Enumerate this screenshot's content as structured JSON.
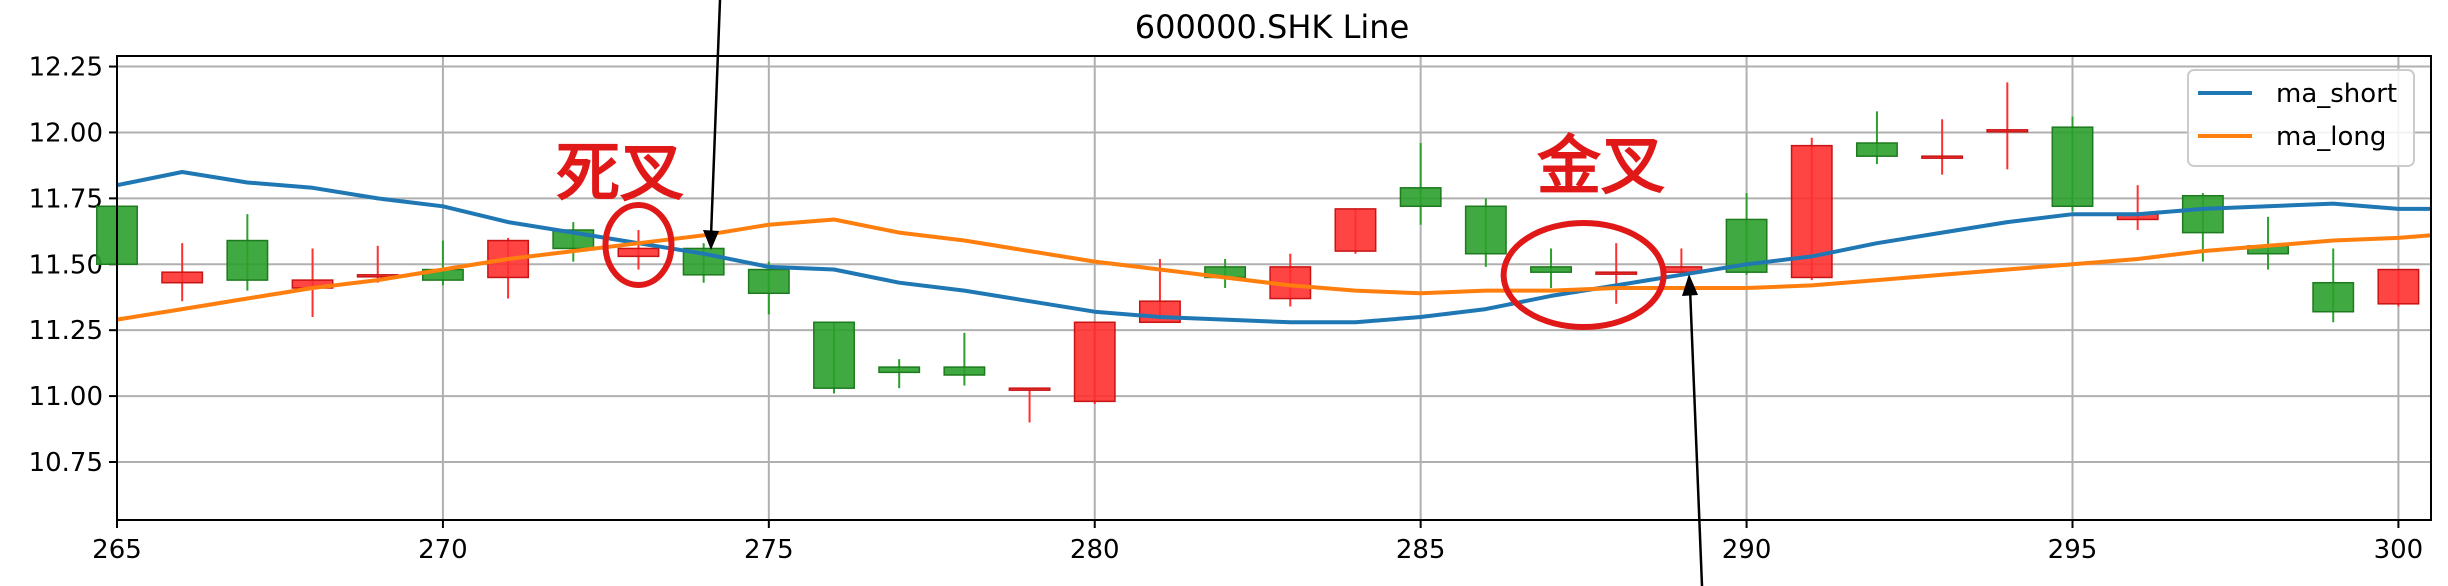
{
  "chart_data": {
    "type": "candlestick",
    "title": "600000.SHK Line",
    "xlabel": "",
    "ylabel": "",
    "xlim": [
      265,
      300.5
    ],
    "ylim": [
      10.53,
      12.29
    ],
    "x_ticks": [
      "265",
      "270",
      "275",
      "280",
      "285",
      "290",
      "295",
      "300"
    ],
    "y_ticks": [
      "10.75",
      "11.00",
      "11.25",
      "11.50",
      "11.75",
      "12.00",
      "12.25"
    ],
    "grid": true,
    "legend": {
      "placement": "top-right",
      "entries": [
        "ma_short",
        "ma_long"
      ]
    },
    "colors": {
      "up": "#ff3030",
      "down": "#2ca02c",
      "ma_short": "#1f77b4",
      "ma_long": "#ff7f0e",
      "annotation": "#e01818"
    },
    "candles": [
      {
        "x": 265,
        "open": 11.72,
        "close": 11.5,
        "high": 11.72,
        "low": 11.37
      },
      {
        "x": 266,
        "open": 11.43,
        "close": 11.47,
        "high": 11.58,
        "low": 11.36
      },
      {
        "x": 267,
        "open": 11.59,
        "close": 11.44,
        "high": 11.69,
        "low": 11.4
      },
      {
        "x": 268,
        "open": 11.41,
        "close": 11.44,
        "high": 11.56,
        "low": 11.3
      },
      {
        "x": 269,
        "open": 11.46,
        "close": 11.46,
        "high": 11.57,
        "low": 11.43
      },
      {
        "x": 270,
        "open": 11.48,
        "close": 11.44,
        "high": 11.59,
        "low": 11.42
      },
      {
        "x": 271,
        "open": 11.45,
        "close": 11.59,
        "high": 11.6,
        "low": 11.37
      },
      {
        "x": 272,
        "open": 11.63,
        "close": 11.56,
        "high": 11.66,
        "low": 11.51
      },
      {
        "x": 273,
        "open": 11.53,
        "close": 11.56,
        "high": 11.63,
        "low": 11.48
      },
      {
        "x": 274,
        "open": 11.56,
        "close": 11.46,
        "high": 11.58,
        "low": 11.43
      },
      {
        "x": 275,
        "open": 11.48,
        "close": 11.39,
        "high": 11.51,
        "low": 11.31
      },
      {
        "x": 276,
        "open": 11.28,
        "close": 11.03,
        "high": 11.28,
        "low": 11.01
      },
      {
        "x": 277,
        "open": 11.11,
        "close": 11.09,
        "high": 11.14,
        "low": 11.03
      },
      {
        "x": 278,
        "open": 11.11,
        "close": 11.08,
        "high": 11.24,
        "low": 11.04
      },
      {
        "x": 279,
        "open": 11.03,
        "close": 11.03,
        "high": 11.03,
        "low": 10.9
      },
      {
        "x": 280,
        "open": 10.98,
        "close": 11.28,
        "high": 11.28,
        "low": 10.97
      },
      {
        "x": 281,
        "open": 11.28,
        "close": 11.36,
        "high": 11.52,
        "low": 11.29
      },
      {
        "x": 282,
        "open": 11.49,
        "close": 11.45,
        "high": 11.52,
        "low": 11.41
      },
      {
        "x": 283,
        "open": 11.37,
        "close": 11.49,
        "high": 11.54,
        "low": 11.34
      },
      {
        "x": 284,
        "open": 11.55,
        "close": 11.71,
        "high": 11.71,
        "low": 11.54
      },
      {
        "x": 285,
        "open": 11.79,
        "close": 11.72,
        "high": 11.96,
        "low": 11.65
      },
      {
        "x": 286,
        "open": 11.72,
        "close": 11.54,
        "high": 11.75,
        "low": 11.49
      },
      {
        "x": 287,
        "open": 11.49,
        "close": 11.47,
        "high": 11.56,
        "low": 11.41
      },
      {
        "x": 288,
        "open": 11.47,
        "close": 11.47,
        "high": 11.58,
        "low": 11.35
      },
      {
        "x": 289,
        "open": 11.47,
        "close": 11.49,
        "high": 11.56,
        "low": 11.47
      },
      {
        "x": 290,
        "open": 11.67,
        "close": 11.47,
        "high": 11.77,
        "low": 11.46
      },
      {
        "x": 291,
        "open": 11.45,
        "close": 11.95,
        "high": 11.98,
        "low": 11.44
      },
      {
        "x": 292,
        "open": 11.96,
        "close": 11.91,
        "high": 12.08,
        "low": 11.88
      },
      {
        "x": 293,
        "open": 11.91,
        "close": 11.91,
        "high": 12.05,
        "low": 11.84
      },
      {
        "x": 294,
        "open": 12.01,
        "close": 12.01,
        "high": 12.19,
        "low": 11.86
      },
      {
        "x": 295,
        "open": 12.02,
        "close": 11.72,
        "high": 12.06,
        "low": 11.7
      },
      {
        "x": 296,
        "open": 11.67,
        "close": 11.69,
        "high": 11.8,
        "low": 11.63
      },
      {
        "x": 297,
        "open": 11.76,
        "close": 11.62,
        "high": 11.77,
        "low": 11.51
      },
      {
        "x": 298,
        "open": 11.57,
        "close": 11.54,
        "high": 11.68,
        "low": 11.48
      },
      {
        "x": 299,
        "open": 11.43,
        "close": 11.32,
        "high": 11.56,
        "low": 11.28
      },
      {
        "x": 300,
        "open": 11.35,
        "close": 11.48,
        "high": 11.48,
        "low": 11.34
      }
    ],
    "series": [
      {
        "name": "ma_short",
        "x": [
          265,
          266,
          267,
          268,
          269,
          270,
          271,
          272,
          273,
          274,
          275,
          276,
          277,
          278,
          279,
          280,
          281,
          282,
          283,
          284,
          285,
          286,
          287,
          288,
          289,
          290,
          291,
          292,
          293,
          294,
          295,
          296,
          297,
          298,
          299,
          300,
          300.5
        ],
        "values": [
          11.8,
          11.85,
          11.81,
          11.79,
          11.75,
          11.72,
          11.66,
          11.62,
          11.58,
          11.54,
          11.49,
          11.48,
          11.43,
          11.4,
          11.36,
          11.32,
          11.3,
          11.29,
          11.28,
          11.28,
          11.3,
          11.33,
          11.38,
          11.42,
          11.46,
          11.5,
          11.53,
          11.58,
          11.62,
          11.66,
          11.69,
          11.69,
          11.71,
          11.72,
          11.73,
          11.71,
          11.71
        ]
      },
      {
        "name": "ma_long",
        "x": [
          265,
          266,
          267,
          268,
          269,
          270,
          271,
          272,
          273,
          274,
          275,
          276,
          277,
          278,
          279,
          280,
          281,
          282,
          283,
          284,
          285,
          286,
          287,
          288,
          289,
          290,
          291,
          292,
          293,
          294,
          295,
          296,
          297,
          298,
          299,
          300,
          300.5
        ],
        "values": [
          11.29,
          11.33,
          11.37,
          11.41,
          11.44,
          11.48,
          11.52,
          11.55,
          11.58,
          11.61,
          11.65,
          11.67,
          11.62,
          11.59,
          11.55,
          11.51,
          11.48,
          11.45,
          11.42,
          11.4,
          11.39,
          11.4,
          11.4,
          11.41,
          11.41,
          11.41,
          11.42,
          11.44,
          11.46,
          11.48,
          11.5,
          11.52,
          11.55,
          11.57,
          11.59,
          11.6,
          11.61
        ]
      }
    ],
    "annotations": [
      {
        "text": "死叉",
        "x": 273,
        "y": 11.62
      },
      {
        "text": "金叉",
        "x": 287.5,
        "y": 11.47
      }
    ]
  }
}
